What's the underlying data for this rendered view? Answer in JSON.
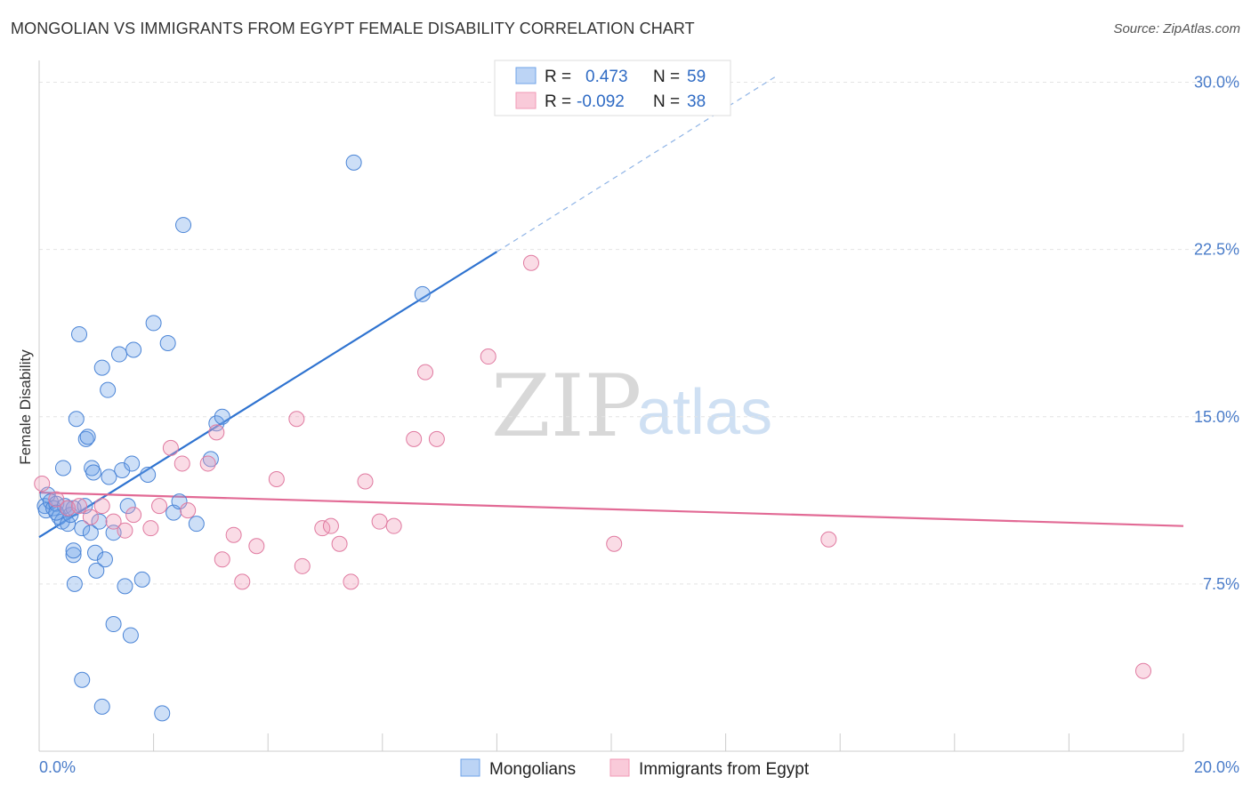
{
  "title": "MONGOLIAN VS IMMIGRANTS FROM EGYPT FEMALE DISABILITY CORRELATION CHART",
  "source": "Source: ZipAtlas.com",
  "watermark": {
    "zip": "ZIP",
    "atlas": "atlas"
  },
  "legend_top": {
    "r_label": "R =",
    "n_label": "N =",
    "rows": [
      {
        "series": "Mongolians",
        "r": "0.473",
        "n": "59",
        "color": "#6fa3e8"
      },
      {
        "series": "Immigrants from Egypt",
        "r": "-0.092",
        "n": "38",
        "color": "#f19ab6"
      }
    ]
  },
  "legend_bottom": [
    "Mongolians",
    "Immigrants from Egypt"
  ],
  "chart_data": {
    "type": "scatter",
    "title": "MONGOLIAN VS IMMIGRANTS FROM EGYPT FEMALE DISABILITY CORRELATION CHART",
    "xlabel": "",
    "ylabel": "Female Disability",
    "xlim": [
      0,
      20
    ],
    "ylim": [
      0,
      30.5
    ],
    "x_tick_labels": [
      "0.0%",
      "20.0%"
    ],
    "y_ticks": [
      7.5,
      15.0,
      22.5,
      30.0
    ],
    "y_tick_labels": [
      "7.5%",
      "15.0%",
      "22.5%",
      "30.0%"
    ],
    "series": [
      {
        "name": "Mongolians",
        "color": "#6fa3e8",
        "stroke": "#4a84d6",
        "points": [
          [
            0.1,
            11.0
          ],
          [
            0.12,
            10.8
          ],
          [
            0.15,
            11.5
          ],
          [
            0.2,
            11.2
          ],
          [
            0.25,
            10.9
          ],
          [
            0.3,
            11.1
          ],
          [
            0.35,
            10.5
          ],
          [
            0.4,
            10.3
          ],
          [
            0.45,
            11.0
          ],
          [
            0.5,
            10.2
          ],
          [
            0.55,
            10.6
          ],
          [
            0.6,
            10.9
          ],
          [
            0.42,
            12.7
          ],
          [
            0.6,
            8.8
          ],
          [
            0.62,
            7.5
          ],
          [
            0.65,
            14.9
          ],
          [
            0.7,
            18.7
          ],
          [
            0.75,
            10.0
          ],
          [
            0.8,
            11.0
          ],
          [
            0.82,
            14.0
          ],
          [
            0.85,
            14.1
          ],
          [
            0.9,
            9.8
          ],
          [
            0.92,
            12.7
          ],
          [
            0.95,
            12.5
          ],
          [
            0.98,
            8.9
          ],
          [
            1.0,
            8.1
          ],
          [
            1.05,
            10.3
          ],
          [
            1.1,
            17.2
          ],
          [
            1.15,
            8.6
          ],
          [
            1.2,
            16.2
          ],
          [
            1.22,
            12.3
          ],
          [
            1.3,
            9.8
          ],
          [
            1.4,
            17.8
          ],
          [
            1.45,
            12.6
          ],
          [
            1.5,
            7.4
          ],
          [
            1.55,
            11.0
          ],
          [
            1.62,
            12.9
          ],
          [
            1.65,
            18.0
          ],
          [
            1.8,
            7.7
          ],
          [
            1.9,
            12.4
          ],
          [
            2.0,
            19.2
          ],
          [
            2.25,
            18.3
          ],
          [
            2.35,
            10.7
          ],
          [
            2.45,
            11.2
          ],
          [
            2.52,
            23.6
          ],
          [
            2.75,
            10.2
          ],
          [
            3.0,
            13.1
          ],
          [
            3.1,
            14.7
          ],
          [
            3.2,
            15.0
          ],
          [
            5.5,
            26.4
          ],
          [
            6.7,
            20.5
          ],
          [
            0.6,
            9.0
          ],
          [
            1.3,
            5.7
          ],
          [
            1.6,
            5.2
          ],
          [
            0.75,
            3.2
          ],
          [
            1.1,
            2.0
          ],
          [
            2.15,
            1.7
          ],
          [
            0.3,
            10.7
          ],
          [
            0.5,
            10.9
          ]
        ]
      },
      {
        "name": "Immigrants from Egypt",
        "color": "#f19ab6",
        "stroke": "#e07aa0",
        "points": [
          [
            0.05,
            12.0
          ],
          [
            0.3,
            11.3
          ],
          [
            0.5,
            10.9
          ],
          [
            0.7,
            11.0
          ],
          [
            0.9,
            10.5
          ],
          [
            1.1,
            11.0
          ],
          [
            1.3,
            10.3
          ],
          [
            1.5,
            9.9
          ],
          [
            1.65,
            10.6
          ],
          [
            1.95,
            10.0
          ],
          [
            2.1,
            11.0
          ],
          [
            2.3,
            13.6
          ],
          [
            2.5,
            12.9
          ],
          [
            2.6,
            10.8
          ],
          [
            2.95,
            12.9
          ],
          [
            3.1,
            14.3
          ],
          [
            3.2,
            8.6
          ],
          [
            3.4,
            9.7
          ],
          [
            3.55,
            7.6
          ],
          [
            3.8,
            9.2
          ],
          [
            4.15,
            12.2
          ],
          [
            4.5,
            14.9
          ],
          [
            4.6,
            8.3
          ],
          [
            4.95,
            10.0
          ],
          [
            5.1,
            10.1
          ],
          [
            5.25,
            9.3
          ],
          [
            5.45,
            7.6
          ],
          [
            5.7,
            12.1
          ],
          [
            5.95,
            10.3
          ],
          [
            6.2,
            10.1
          ],
          [
            6.55,
            14.0
          ],
          [
            6.75,
            17.0
          ],
          [
            6.95,
            14.0
          ],
          [
            7.85,
            17.7
          ],
          [
            8.6,
            21.9
          ],
          [
            10.05,
            9.3
          ],
          [
            13.8,
            9.5
          ],
          [
            19.3,
            3.6
          ]
        ]
      }
    ],
    "trendlines": [
      {
        "series": "Mongolians",
        "x0": 0.0,
        "y0": 9.6,
        "x1": 8.0,
        "y1": 22.4,
        "dash_to_x": 12.9,
        "dash_to_y": 30.3
      },
      {
        "series": "Immigrants from Egypt",
        "x0": 0.0,
        "y0": 11.6,
        "x1": 20.0,
        "y1": 10.1
      }
    ]
  }
}
